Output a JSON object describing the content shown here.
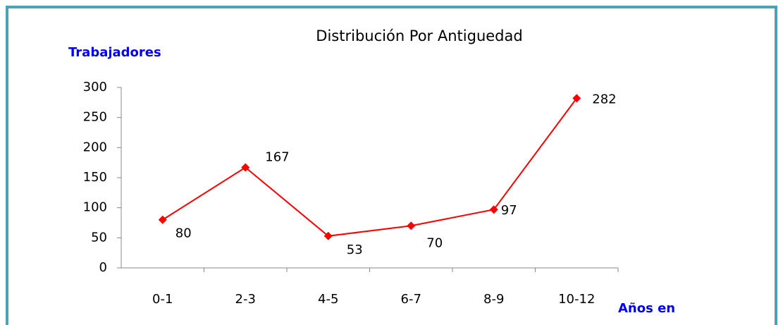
{
  "chart_data": {
    "type": "line",
    "title": "Distribución Por Antiguedad",
    "y_label": "Trabajadores",
    "x_label": "Años en",
    "categories": [
      "0-1",
      "2-3",
      "4-5",
      "6-7",
      "8-9",
      "10-12"
    ],
    "series": [
      {
        "name": "Trabajadores",
        "color": "#ff0000",
        "values": [
          80,
          167,
          53,
          70,
          97,
          282
        ]
      }
    ],
    "ylim": [
      0,
      300
    ],
    "yticks": [
      0,
      50,
      100,
      150,
      200,
      250,
      300
    ],
    "grid": false
  }
}
